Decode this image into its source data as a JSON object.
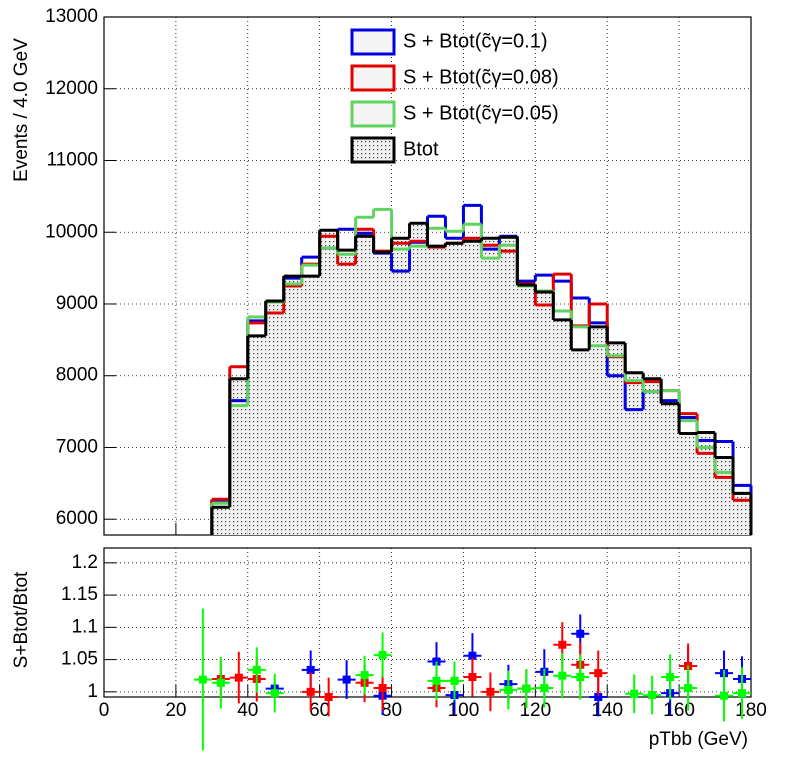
{
  "chart_data": [
    {
      "type": "histogram",
      "ylabel": "Events / 4.0 GeV",
      "bins": [
        30,
        35,
        40,
        45,
        50,
        55,
        60,
        65,
        70,
        75,
        80,
        85,
        90,
        95,
        100,
        105,
        110,
        115,
        120,
        125,
        130,
        135,
        140,
        145,
        150,
        155,
        160,
        165,
        170,
        175,
        180
      ],
      "xlim": [
        0,
        180
      ],
      "xticks": [
        0,
        20,
        40,
        60,
        80,
        100,
        120,
        140,
        160,
        180
      ],
      "ylim": [
        5780,
        13000
      ],
      "yticks": [
        6000,
        7000,
        8000,
        9000,
        10000,
        11000,
        12000,
        13000
      ],
      "grid": true,
      "legend": "top",
      "series": [
        {
          "name": "S + Btot(c̃γ=0.1)",
          "color": "#0000e0",
          "values": [
            6264,
            7653,
            8764,
            9042,
            9361,
            9653,
            9778,
            10042,
            9986,
            9708,
            9458,
            9861,
            10222,
            9917,
            10375,
            9764,
            9944,
            9319,
            9403,
            9319,
            9083,
            8736,
            8000,
            7528,
            7778,
            7653,
            7417,
            7097,
            7083,
            6472
          ]
        },
        {
          "name": "S + Btot(c̃γ=0.08)",
          "color": "#e00000",
          "values": [
            6278,
            8125,
            8736,
            8875,
            9250,
            9556,
            9944,
            9556,
            10042,
            9736,
            9847,
            9875,
            9792,
            9847,
            9917,
            9819,
            9736,
            9278,
            8986,
            9417,
            8694,
            9000,
            8264,
            7903,
            7917,
            7792,
            7472,
            6917,
            6583,
            6264
          ]
        },
        {
          "name": "S + Btot(c̃γ=0.05)",
          "color": "#5fd35f",
          "values": [
            6222,
            7583,
            8819,
            9028,
            9278,
            9542,
            9778,
            9694,
            10208,
            10319,
            9764,
            9806,
            10056,
            10014,
            10111,
            9639,
            9819,
            9250,
            9181,
            8903,
            8681,
            8417,
            8278,
            7931,
            7778,
            7792,
            7375,
            7000,
            6653,
            6361
          ]
        },
        {
          "name": "Btot",
          "color": "#000000",
          "values": [
            6167,
            7958,
            8556,
            9042,
            9389,
            9389,
            10028,
            9750,
            9944,
            9722,
            9917,
            10125,
            9806,
            9847,
            9875,
            9917,
            9930,
            9264,
            9167,
            8778,
            8361,
            8681,
            8458,
            8042,
            7958,
            7611,
            7194,
            7208,
            6861,
            6361
          ]
        }
      ]
    },
    {
      "type": "scatter",
      "xlabel": "pTbb (GeV)",
      "ylabel": "S+Btot/Btot",
      "xlim": [
        0,
        180
      ],
      "xticks": [
        0,
        20,
        40,
        60,
        80,
        100,
        120,
        140,
        160,
        180
      ],
      "ylim": [
        0.992,
        1.223
      ],
      "yticks": [
        1,
        1.05,
        1.1,
        1.15,
        1.2
      ],
      "grid": true,
      "series": [
        {
          "color": "#0000ff",
          "x": [
            47.5,
            57.5,
            67.5,
            77.5,
            92.5,
            97.5,
            102.5,
            112.5,
            122.5,
            132.5,
            137.5,
            157.5,
            162.5,
            172.5,
            177.5
          ],
          "values": [
            1.005,
            1.034,
            1.019,
            0.994,
            1.047,
            0.995,
            1.056,
            1.012,
            1.031,
            1.09,
            0.992,
            0.998,
            1.04,
            1.029,
            1.02
          ],
          "errors": [
            0.01,
            0.03,
            0.03,
            0.03,
            0.03,
            0.03,
            0.035,
            0.03,
            0.035,
            0.03,
            0.03,
            0.035,
            0.03,
            0.035,
            0.035
          ]
        },
        {
          "color": "#ff0000",
          "x": [
            32.5,
            37.5,
            42.5,
            57.5,
            62.5,
            72.5,
            77.5,
            92.5,
            102.5,
            107.5,
            117.5,
            127.5,
            132.5,
            137.5,
            162.5
          ],
          "values": [
            1.02,
            1.022,
            1.02,
            1.0,
            0.992,
            1.014,
            1.006,
            1.006,
            1.023,
            1.0,
            1.005,
            1.073,
            1.042,
            1.029,
            1.04
          ],
          "errors": [
            0.03,
            0.04,
            0.035,
            0.03,
            0.03,
            0.03,
            0.035,
            0.03,
            0.03,
            0.03,
            0.03,
            0.035,
            0.035,
            0.035,
            0.035
          ]
        },
        {
          "color": "#00ff00",
          "x": [
            27.5,
            32.5,
            42.5,
            47.5,
            72.5,
            77.5,
            92.5,
            97.5,
            112.5,
            117.5,
            122.5,
            127.5,
            132.5,
            147.5,
            152.5,
            157.5,
            162.5,
            172.5,
            177.5
          ],
          "values": [
            1.019,
            1.014,
            1.034,
            0.998,
            1.026,
            1.057,
            1.017,
            1.017,
            1.003,
            1.005,
            1.006,
            1.025,
            1.023,
            0.997,
            0.995,
            1.023,
            1.006,
            0.994,
            0.998
          ],
          "errors": [
            0.11,
            0.04,
            0.035,
            0.03,
            0.03,
            0.035,
            0.03,
            0.03,
            0.03,
            0.03,
            0.03,
            0.035,
            0.035,
            0.03,
            0.03,
            0.035,
            0.035,
            0.04,
            0.04
          ]
        }
      ]
    }
  ]
}
